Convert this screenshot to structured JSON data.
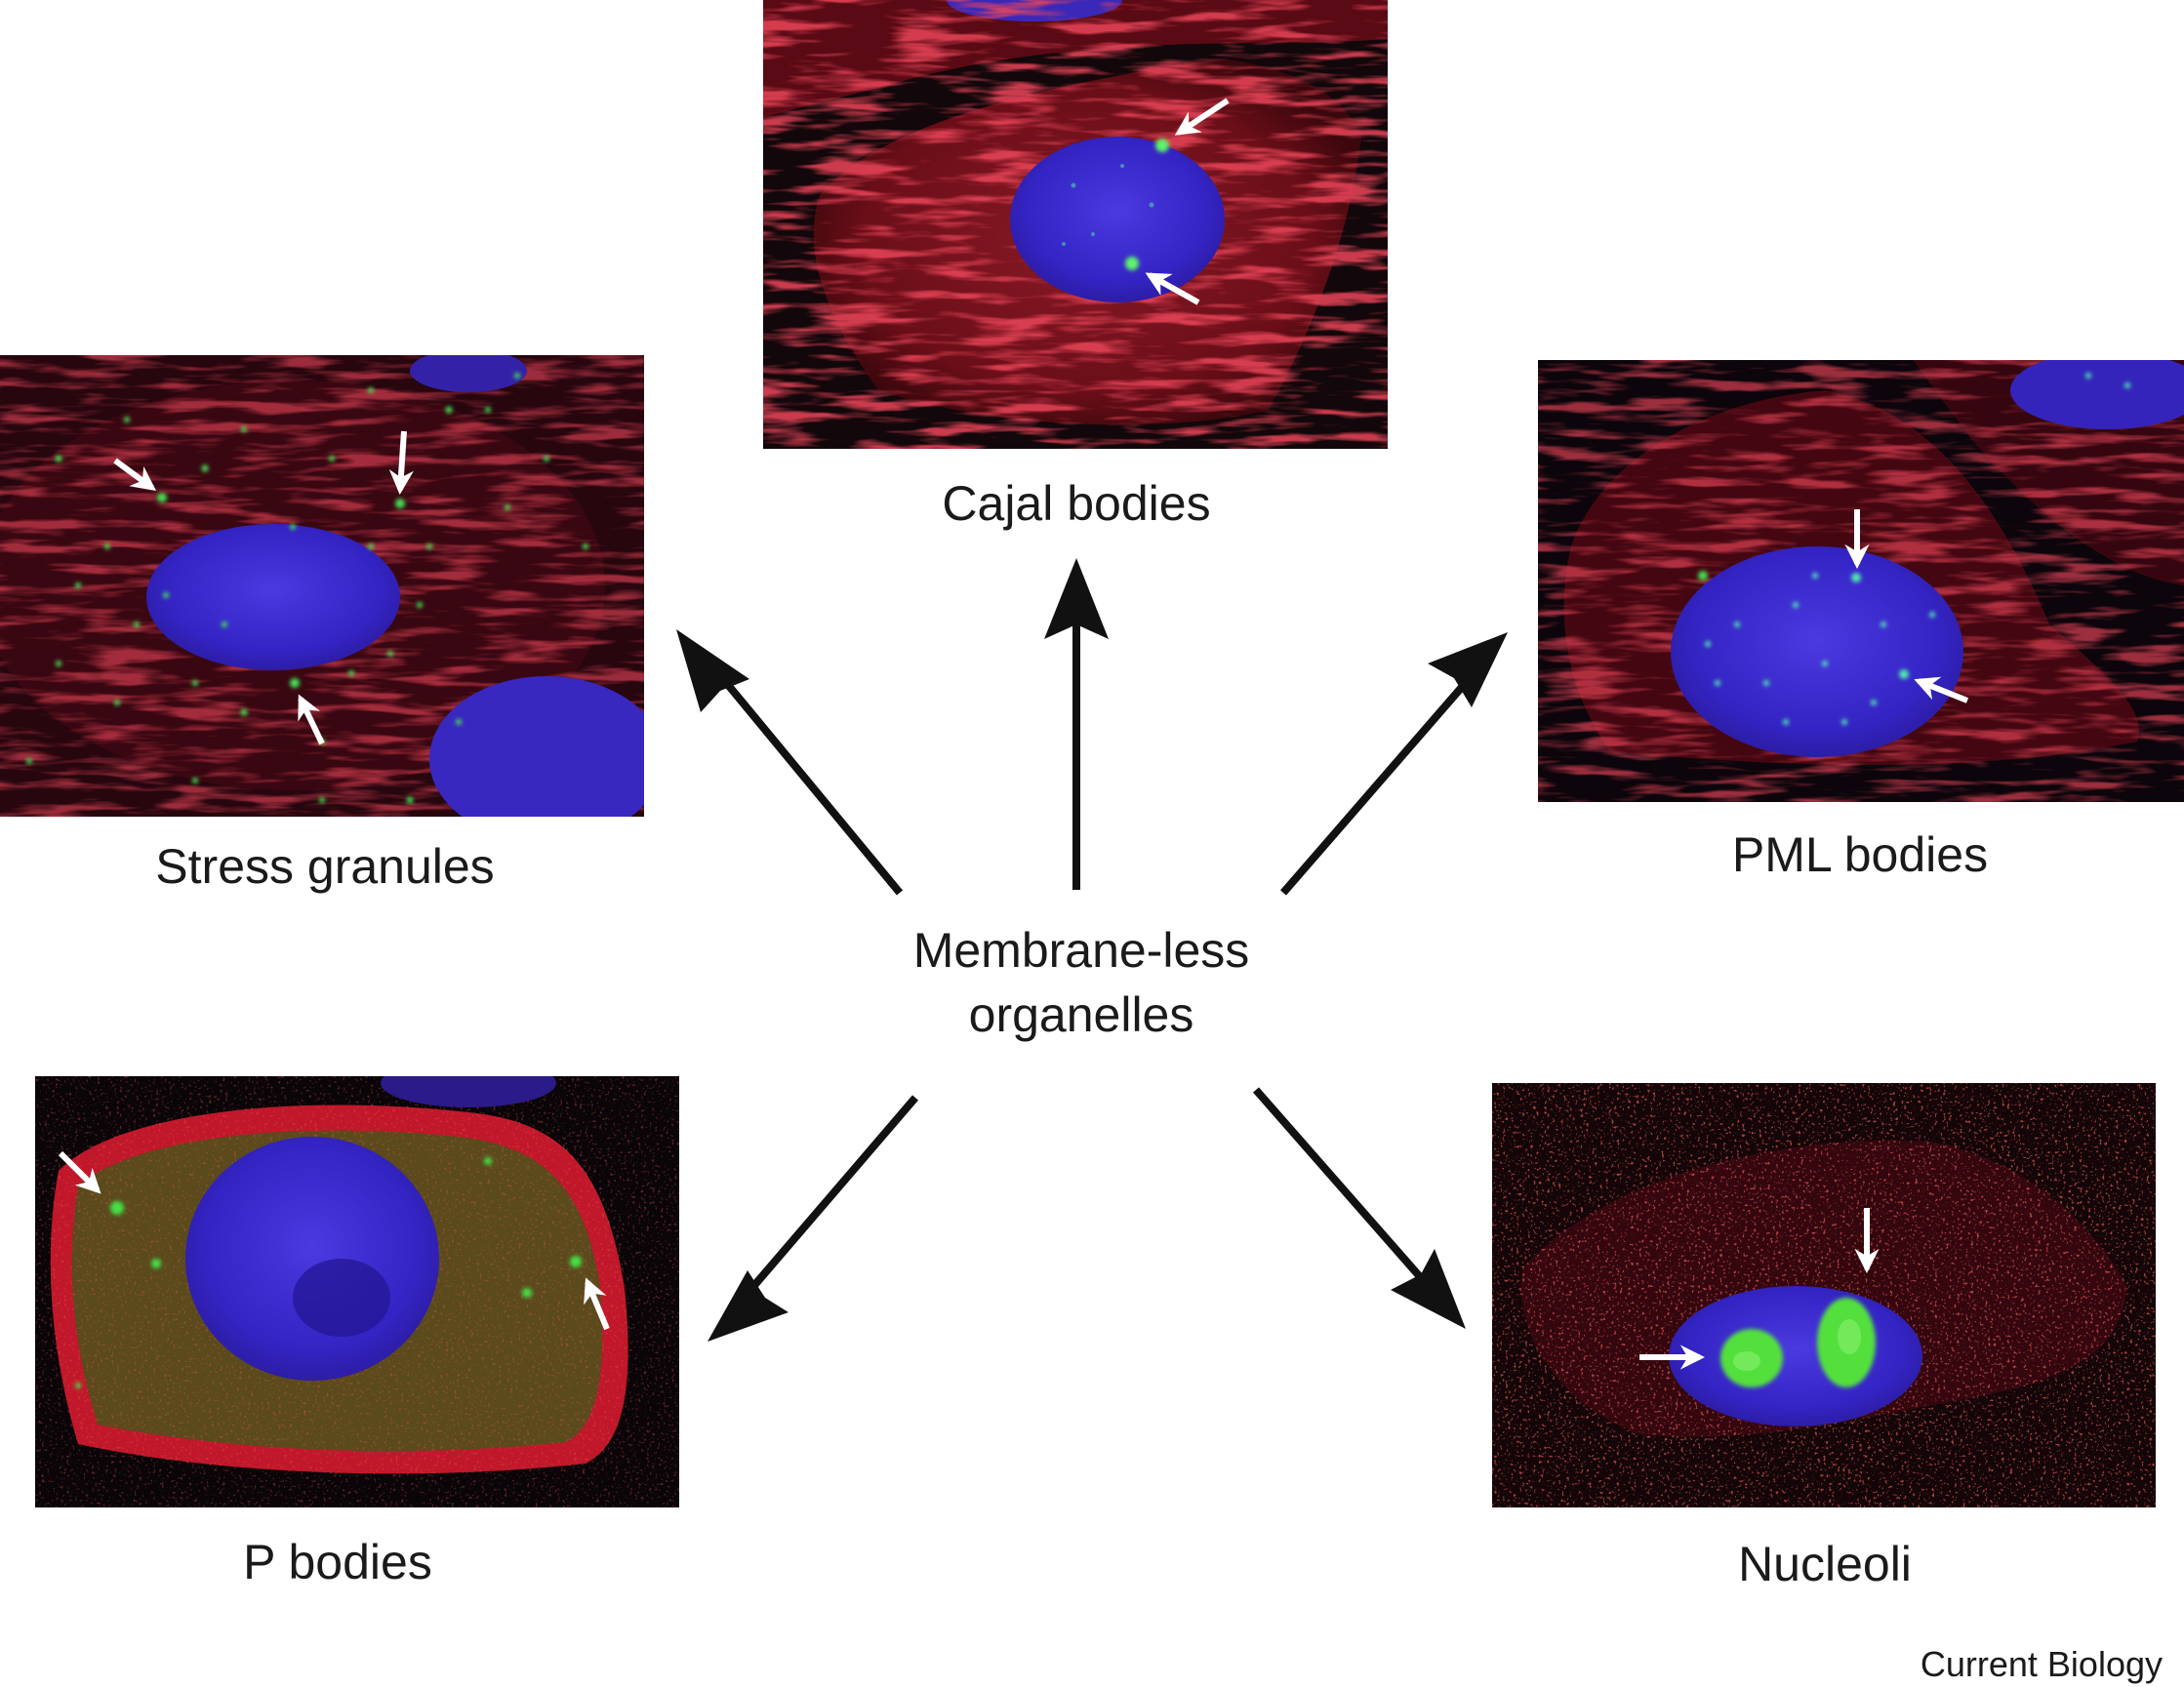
{
  "center": {
    "line1": "Membrane-less",
    "line2": "organelles"
  },
  "organelles": {
    "cajal": "Cajal bodies",
    "stress": "Stress granules",
    "pml": "PML bodies",
    "pbodies": "P bodies",
    "nucleoli": "Nucleoli"
  },
  "credit": "Current Biology",
  "colors": {
    "cytoskeleton": "#c8141e",
    "nucleus": "#3a2ecf",
    "granule": "#33e040",
    "background": "#100608",
    "arrow": "#111111",
    "pointer": "#ffffff"
  }
}
